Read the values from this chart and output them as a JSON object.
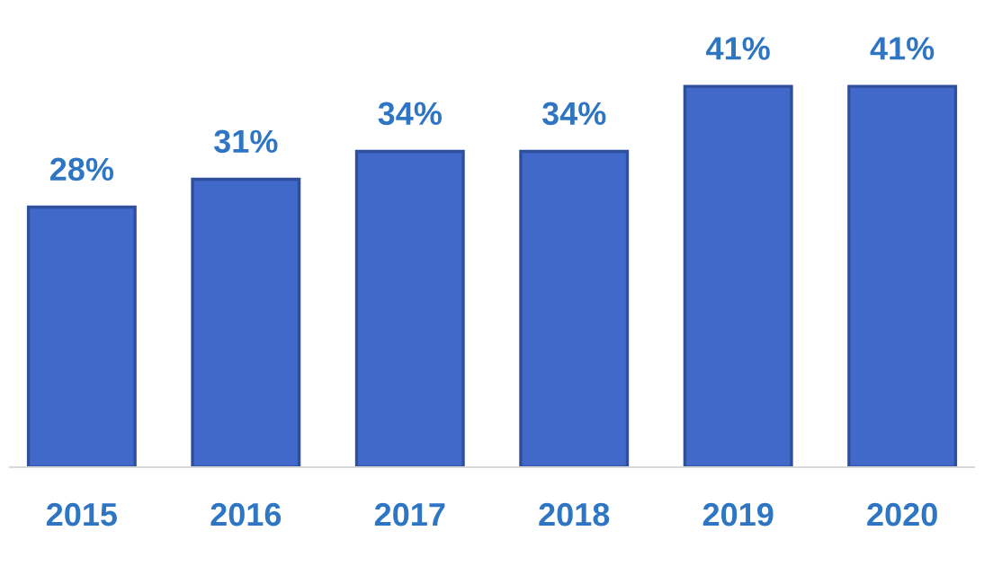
{
  "chart_data": {
    "type": "bar",
    "categories": [
      "2015",
      "2016",
      "2017",
      "2018",
      "2019",
      "2020"
    ],
    "values": [
      28,
      31,
      34,
      34,
      41,
      41
    ],
    "value_labels": [
      "28%",
      "31%",
      "34%",
      "34%",
      "41%",
      "41%"
    ],
    "color": "#4169c9",
    "grid": false,
    "legend": false
  }
}
